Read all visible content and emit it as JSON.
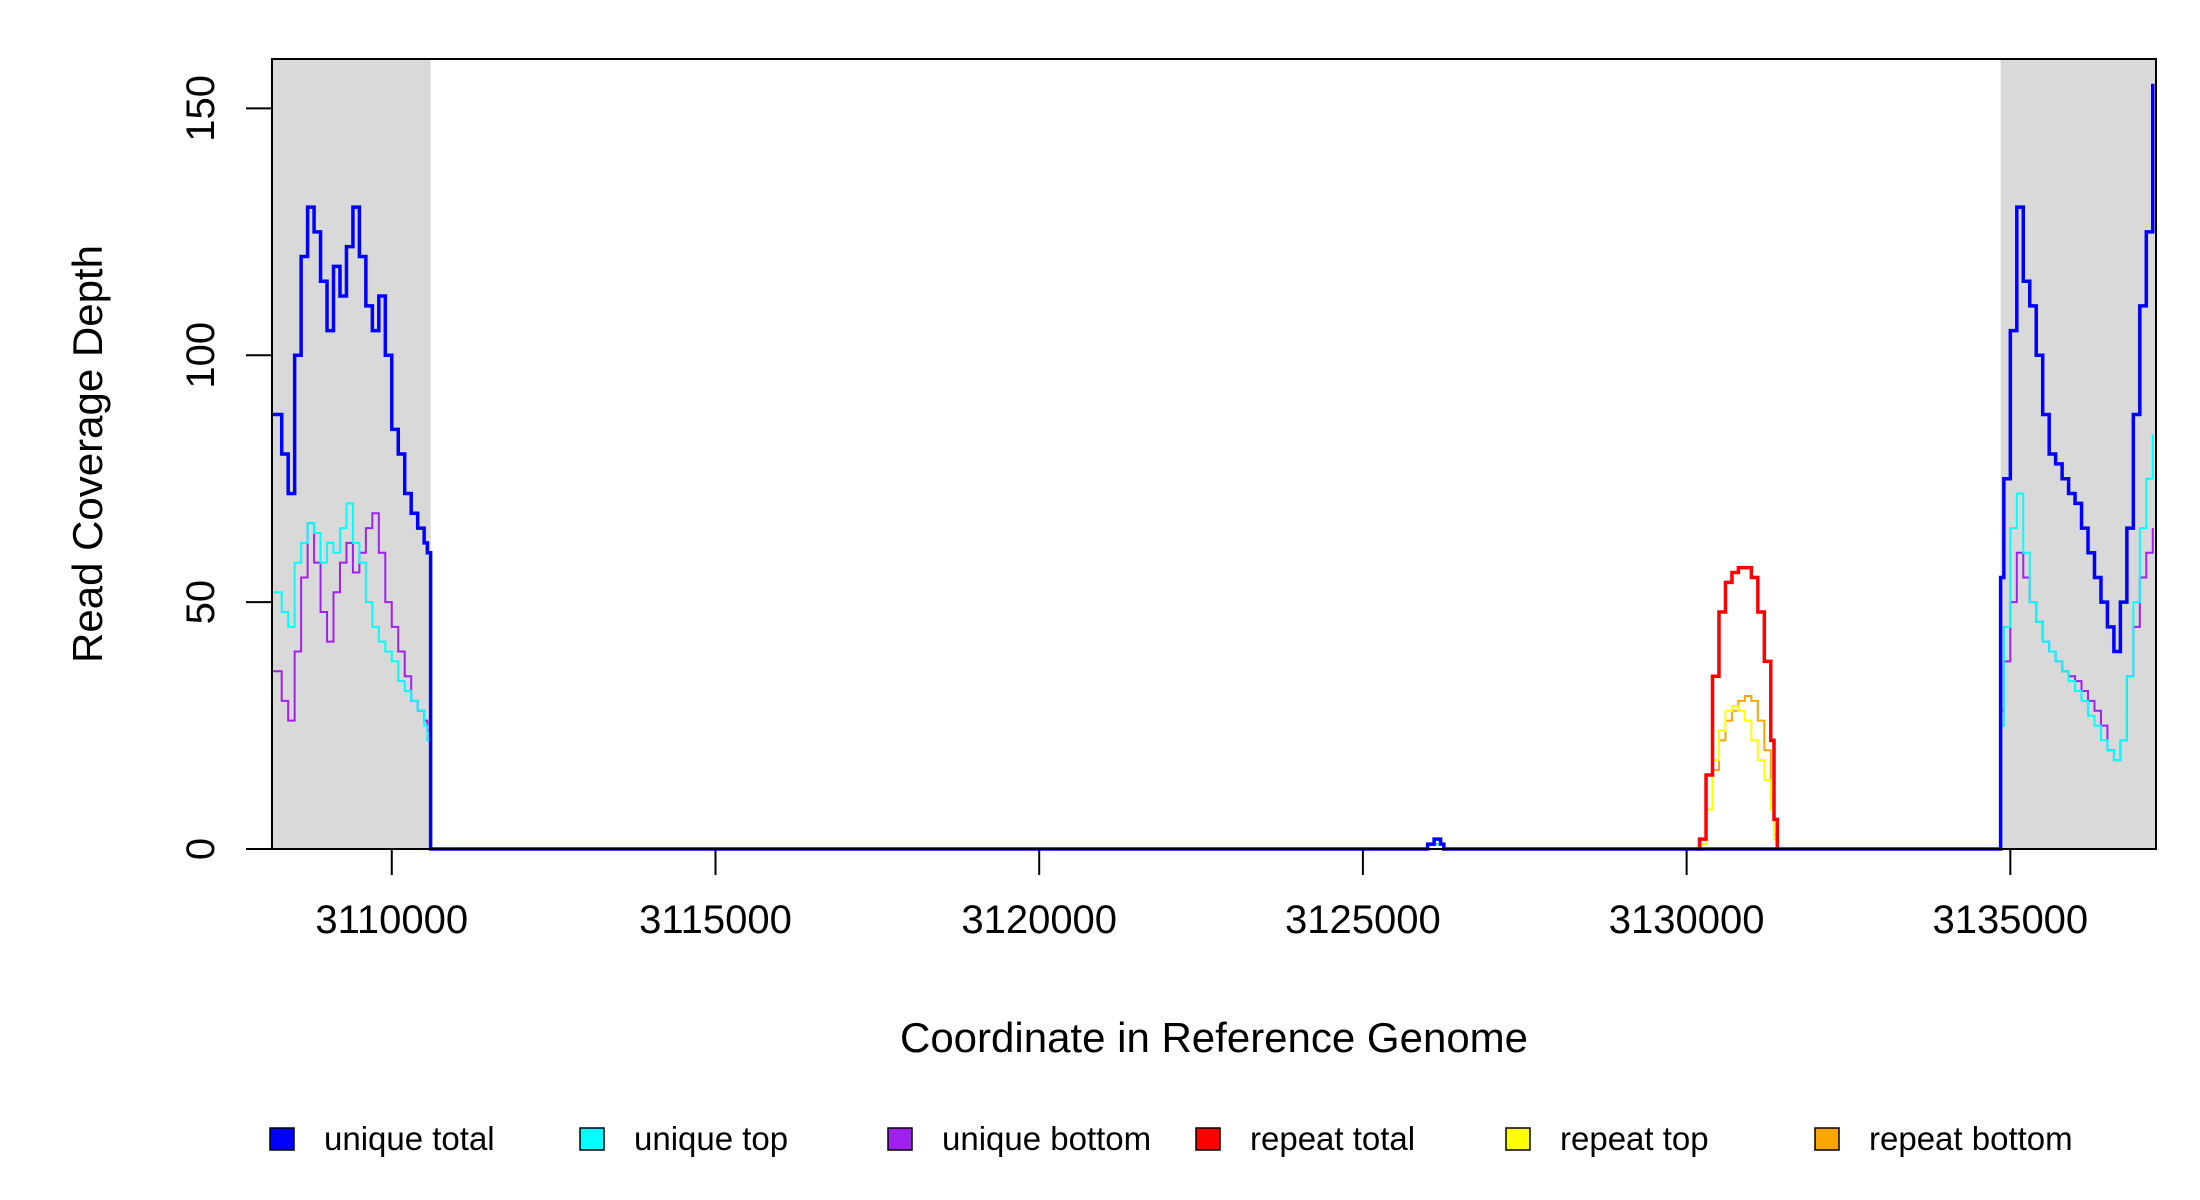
{
  "chart_data": {
    "type": "line",
    "title": "",
    "xlabel": "Coordinate in Reference Genome",
    "ylabel": "Read Coverage Depth",
    "xlim": [
      3108150,
      3137250
    ],
    "ylim": [
      0,
      160
    ],
    "x_ticks": [
      3110000,
      3115000,
      3120000,
      3125000,
      3130000,
      3135000
    ],
    "y_ticks": [
      0,
      50,
      100,
      150
    ],
    "grid": false,
    "legend_position": "bottom",
    "shaded_regions": [
      {
        "x_start": 3108150,
        "x_end": 3110600,
        "color": "#d9d9d9"
      },
      {
        "x_start": 3134850,
        "x_end": 3137250,
        "color": "#d9d9d9"
      }
    ],
    "series": [
      {
        "name": "unique total",
        "color": "#0000ff",
        "width": 3.5,
        "x": [
          3108150,
          3108300,
          3108400,
          3108500,
          3108600,
          3108700,
          3108800,
          3108900,
          3109000,
          3109100,
          3109200,
          3109300,
          3109400,
          3109500,
          3109600,
          3109700,
          3109800,
          3109900,
          3110000,
          3110100,
          3110200,
          3110300,
          3110400,
          3110500,
          3110550,
          3110600,
          3110650,
          3125950,
          3126000,
          3126100,
          3126200,
          3126250,
          3134800,
          3134850,
          3134900,
          3135000,
          3135100,
          3135200,
          3135300,
          3135400,
          3135500,
          3135600,
          3135700,
          3135800,
          3135900,
          3136000,
          3136100,
          3136200,
          3136300,
          3136400,
          3136500,
          3136600,
          3136700,
          3136800,
          3136900,
          3137000,
          3137100,
          3137200
        ],
        "y": [
          88,
          80,
          72,
          100,
          120,
          130,
          125,
          115,
          105,
          118,
          112,
          122,
          130,
          120,
          110,
          105,
          112,
          100,
          85,
          80,
          72,
          68,
          65,
          62,
          60,
          0,
          0,
          0,
          1,
          2,
          1,
          0,
          0,
          55,
          75,
          105,
          130,
          115,
          110,
          100,
          88,
          80,
          78,
          75,
          72,
          70,
          65,
          60,
          55,
          50,
          45,
          40,
          50,
          65,
          88,
          110,
          125,
          155
        ]
      },
      {
        "name": "unique top",
        "color": "#00ffff",
        "width": 2,
        "x": [
          3108150,
          3108300,
          3108400,
          3108500,
          3108600,
          3108700,
          3108800,
          3108900,
          3109000,
          3109100,
          3109200,
          3109300,
          3109400,
          3109500,
          3109600,
          3109700,
          3109800,
          3109900,
          3110000,
          3110100,
          3110200,
          3110300,
          3110400,
          3110500,
          3110550,
          3110600,
          3110650,
          3125950,
          3126000,
          3126100,
          3126200,
          3126250,
          3134800,
          3134850,
          3134900,
          3135000,
          3135100,
          3135200,
          3135300,
          3135400,
          3135500,
          3135600,
          3135700,
          3135800,
          3135900,
          3136000,
          3136100,
          3136200,
          3136300,
          3136400,
          3136500,
          3136600,
          3136700,
          3136800,
          3136900,
          3137000,
          3137100,
          3137200
        ],
        "y": [
          52,
          48,
          45,
          58,
          62,
          66,
          64,
          58,
          62,
          60,
          65,
          70,
          62,
          58,
          50,
          45,
          42,
          40,
          38,
          34,
          32,
          30,
          28,
          25,
          22,
          0,
          0,
          0,
          1,
          1,
          1,
          0,
          0,
          25,
          45,
          65,
          72,
          60,
          50,
          46,
          42,
          40,
          38,
          36,
          34,
          32,
          30,
          27,
          25,
          22,
          20,
          18,
          22,
          35,
          50,
          65,
          75,
          84
        ]
      },
      {
        "name": "unique bottom",
        "color": "#a020f0",
        "width": 2,
        "x": [
          3108150,
          3108300,
          3108400,
          3108500,
          3108600,
          3108700,
          3108800,
          3108900,
          3109000,
          3109100,
          3109200,
          3109300,
          3109400,
          3109500,
          3109600,
          3109700,
          3109800,
          3109900,
          3110000,
          3110100,
          3110200,
          3110300,
          3110400,
          3110500,
          3110550,
          3110600,
          3110650,
          3125950,
          3126000,
          3126100,
          3126200,
          3126250,
          3134800,
          3134850,
          3134900,
          3135000,
          3135100,
          3135200,
          3135300,
          3135400,
          3135500,
          3135600,
          3135700,
          3135800,
          3135900,
          3136000,
          3136100,
          3136200,
          3136300,
          3136400,
          3136500,
          3136600,
          3136700,
          3136800,
          3136900,
          3137000,
          3137100,
          3137200
        ],
        "y": [
          36,
          30,
          26,
          40,
          55,
          66,
          58,
          48,
          42,
          52,
          58,
          62,
          56,
          60,
          65,
          68,
          60,
          50,
          45,
          40,
          35,
          30,
          28,
          26,
          24,
          0,
          0,
          0,
          1,
          1,
          1,
          0,
          0,
          28,
          38,
          50,
          60,
          55,
          50,
          46,
          42,
          40,
          38,
          36,
          35,
          34,
          32,
          30,
          28,
          25,
          20,
          18,
          22,
          35,
          45,
          55,
          60,
          65
        ]
      },
      {
        "name": "repeat total",
        "color": "#ff0000",
        "width": 3.5,
        "x": [
          3130150,
          3130200,
          3130300,
          3130400,
          3130500,
          3130600,
          3130700,
          3130800,
          3130900,
          3131000,
          3131100,
          3131200,
          3131300,
          3131350,
          3131400
        ],
        "y": [
          0,
          2,
          15,
          35,
          48,
          54,
          56,
          57,
          57,
          55,
          48,
          38,
          22,
          6,
          0
        ]
      },
      {
        "name": "repeat top",
        "color": "#ffff00",
        "width": 2,
        "x": [
          3130150,
          3130200,
          3130300,
          3130400,
          3130500,
          3130600,
          3130700,
          3130800,
          3130900,
          3131000,
          3131100,
          3131200,
          3131300,
          3131350,
          3131400
        ],
        "y": [
          0,
          1,
          8,
          18,
          24,
          28,
          29,
          28,
          26,
          22,
          18,
          14,
          8,
          2,
          0
        ]
      },
      {
        "name": "repeat bottom",
        "color": "#ffa500",
        "width": 2,
        "x": [
          3108150,
          3110600,
          3130150,
          3130200,
          3130300,
          3130400,
          3130500,
          3130600,
          3130700,
          3130800,
          3130900,
          3131000,
          3131100,
          3131200,
          3131300,
          3131350,
          3131400,
          3137250
        ],
        "y": [
          0,
          0,
          0,
          1,
          8,
          16,
          22,
          26,
          28,
          30,
          31,
          30,
          26,
          20,
          10,
          3,
          0,
          0
        ]
      }
    ]
  }
}
